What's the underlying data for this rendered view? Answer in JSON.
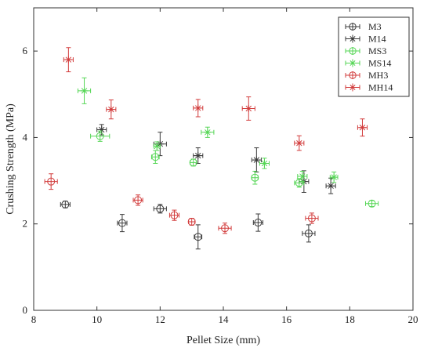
{
  "chart_data": {
    "type": "scatter",
    "xlabel": "Pellet Size (mm)",
    "ylabel": "Crushing Strength (MPa)",
    "xlim": [
      8,
      20
    ],
    "ylim": [
      0,
      7
    ],
    "xticks": [
      "8",
      "10",
      "12",
      "14",
      "16",
      "18",
      "20"
    ],
    "yticks": [
      "0",
      "2",
      "4",
      "6"
    ],
    "grid": false,
    "legend_position": "top-right",
    "series": [
      {
        "name": "M3",
        "marker": "circle",
        "color": "#3a3a3a",
        "points": [
          {
            "x": 9.0,
            "y": 2.45,
            "xerr": 0.15,
            "yerr": 0.08
          },
          {
            "x": 10.8,
            "y": 2.02,
            "xerr": 0.15,
            "yerr": 0.2
          },
          {
            "x": 12.0,
            "y": 2.35,
            "xerr": 0.2,
            "yerr": 0.1
          },
          {
            "x": 13.2,
            "y": 1.7,
            "xerr": 0.12,
            "yerr": 0.28
          },
          {
            "x": 15.1,
            "y": 2.03,
            "xerr": 0.15,
            "yerr": 0.2
          },
          {
            "x": 16.7,
            "y": 1.78,
            "xerr": 0.2,
            "yerr": 0.2
          }
        ]
      },
      {
        "name": "M14",
        "marker": "asterisk",
        "color": "#3a3a3a",
        "points": [
          {
            "x": 10.15,
            "y": 4.18,
            "xerr": 0.15,
            "yerr": 0.12
          },
          {
            "x": 12.0,
            "y": 3.85,
            "xerr": 0.2,
            "yerr": 0.27
          },
          {
            "x": 13.2,
            "y": 3.58,
            "xerr": 0.15,
            "yerr": 0.18
          },
          {
            "x": 15.05,
            "y": 3.48,
            "xerr": 0.15,
            "yerr": 0.28
          },
          {
            "x": 16.55,
            "y": 2.98,
            "xerr": 0.15,
            "yerr": 0.25
          },
          {
            "x": 17.4,
            "y": 2.88,
            "xerr": 0.15,
            "yerr": 0.18
          }
        ]
      },
      {
        "name": "MS3",
        "marker": "circle",
        "color": "#55d655",
        "points": [
          {
            "x": 10.1,
            "y": 4.03,
            "xerr": 0.3,
            "yerr": 0.12
          },
          {
            "x": 11.85,
            "y": 3.55,
            "xerr": 0.12,
            "yerr": 0.15
          },
          {
            "x": 13.05,
            "y": 3.42,
            "xerr": 0.1,
            "yerr": 0.08
          },
          {
            "x": 15.0,
            "y": 3.07,
            "xerr": 0.1,
            "yerr": 0.15
          },
          {
            "x": 16.4,
            "y": 2.95,
            "xerr": 0.15,
            "yerr": 0.1
          },
          {
            "x": 18.7,
            "y": 2.47,
            "xerr": 0.2,
            "yerr": 0.07
          }
        ]
      },
      {
        "name": "MS14",
        "marker": "asterisk",
        "color": "#55d655",
        "points": [
          {
            "x": 9.6,
            "y": 5.08,
            "xerr": 0.2,
            "yerr": 0.3
          },
          {
            "x": 11.9,
            "y": 3.8,
            "xerr": 0.1,
            "yerr": 0.1
          },
          {
            "x": 13.5,
            "y": 4.12,
            "xerr": 0.2,
            "yerr": 0.12
          },
          {
            "x": 15.3,
            "y": 3.4,
            "xerr": 0.15,
            "yerr": 0.12
          },
          {
            "x": 16.5,
            "y": 3.1,
            "xerr": 0.15,
            "yerr": 0.12
          },
          {
            "x": 17.5,
            "y": 3.08,
            "xerr": 0.12,
            "yerr": 0.12
          }
        ]
      },
      {
        "name": "MH3",
        "marker": "circle",
        "color": "#d23c3c",
        "points": [
          {
            "x": 8.55,
            "y": 2.98,
            "xerr": 0.2,
            "yerr": 0.18
          },
          {
            "x": 11.3,
            "y": 2.55,
            "xerr": 0.15,
            "yerr": 0.12
          },
          {
            "x": 12.45,
            "y": 2.2,
            "xerr": 0.15,
            "yerr": 0.12
          },
          {
            "x": 13.0,
            "y": 2.05,
            "xerr": 0.1,
            "yerr": 0.08
          },
          {
            "x": 14.05,
            "y": 1.9,
            "xerr": 0.2,
            "yerr": 0.12
          },
          {
            "x": 16.8,
            "y": 2.13,
            "xerr": 0.2,
            "yerr": 0.12
          }
        ]
      },
      {
        "name": "MH14",
        "marker": "asterisk",
        "color": "#d23c3c",
        "points": [
          {
            "x": 9.1,
            "y": 5.8,
            "xerr": 0.15,
            "yerr": 0.28
          },
          {
            "x": 10.45,
            "y": 4.65,
            "xerr": 0.15,
            "yerr": 0.22
          },
          {
            "x": 13.2,
            "y": 4.68,
            "xerr": 0.15,
            "yerr": 0.2
          },
          {
            "x": 14.8,
            "y": 4.67,
            "xerr": 0.2,
            "yerr": 0.27
          },
          {
            "x": 16.4,
            "y": 3.87,
            "xerr": 0.15,
            "yerr": 0.17
          },
          {
            "x": 18.4,
            "y": 4.23,
            "xerr": 0.15,
            "yerr": 0.2
          }
        ]
      }
    ]
  }
}
